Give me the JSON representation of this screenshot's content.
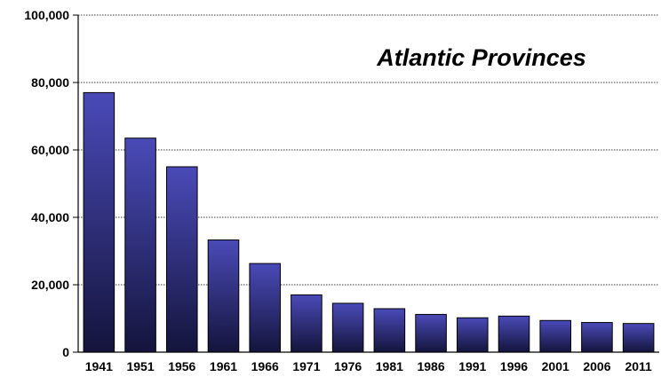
{
  "chart_data": {
    "type": "bar",
    "title": "Atlantic Provinces",
    "xlabel": "",
    "ylabel": "",
    "categories": [
      "1941",
      "1951",
      "1956",
      "1961",
      "1966",
      "1971",
      "1976",
      "1981",
      "1986",
      "1991",
      "1996",
      "2001",
      "2006",
      "2011"
    ],
    "values": [
      77000,
      63500,
      55000,
      33300,
      26300,
      17000,
      14500,
      12900,
      11200,
      10200,
      10700,
      9400,
      8800,
      8500
    ],
    "ylim": [
      0,
      100000
    ],
    "yticks": [
      0,
      20000,
      40000,
      60000,
      80000,
      100000
    ],
    "ytick_labels": [
      "0",
      "20,000",
      "40,000",
      "60,000",
      "80,000",
      "100,000"
    ],
    "grid": true,
    "legend": "none",
    "colors": {
      "bar_top": "#4a4ab8",
      "bar_bottom": "#14143c",
      "bar_border": "#000000",
      "grid": "#000000"
    }
  }
}
